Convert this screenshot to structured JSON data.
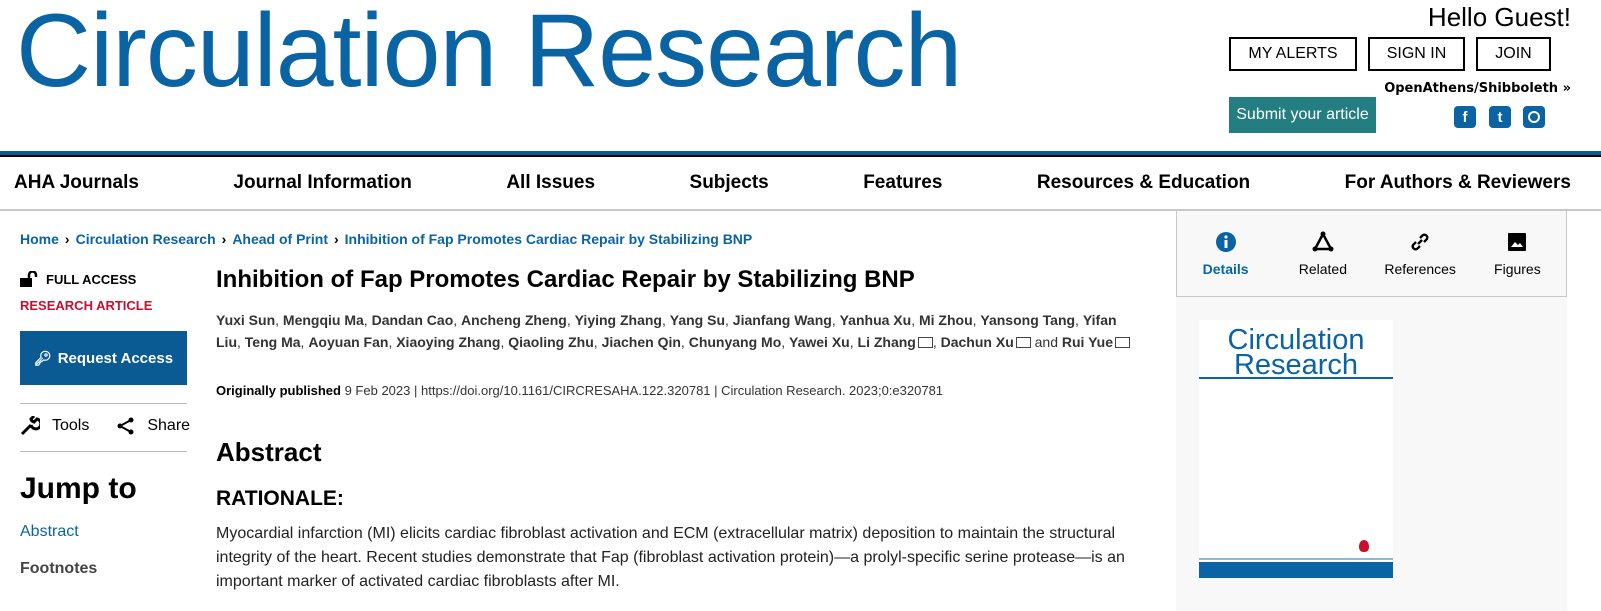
{
  "header": {
    "logo": "Circulation Research",
    "greeting": "Hello Guest!",
    "buttons": [
      "MY ALERTS",
      "SIGN IN",
      "JOIN"
    ],
    "openathens": "OpenAthens/Shibboleth »",
    "submit": "Submit your article",
    "social": [
      "facebook-icon",
      "twitter-icon",
      "instagram-icon"
    ]
  },
  "nav": [
    "AHA Journals",
    "Journal Information",
    "All Issues",
    "Subjects",
    "Features",
    "Resources & Education",
    "For Authors & Reviewers"
  ],
  "breadcrumb": [
    "Home",
    "Circulation Research",
    "Ahead of Print",
    "Inhibition of Fap Promotes Cardiac Repair by Stabilizing BNP"
  ],
  "sidebar": {
    "access": "FULL ACCESS",
    "type": "RESEARCH ARTICLE",
    "request": "Request Access",
    "tools": "Tools",
    "share": "Share",
    "jump_title": "Jump to",
    "jump_links": [
      "Abstract",
      "Footnotes"
    ]
  },
  "article": {
    "title": "Inhibition of Fap Promotes Cardiac Repair by Stabilizing BNP",
    "authors": [
      "Yuxi Sun",
      "Mengqiu Ma",
      "Dandan Cao",
      "Ancheng Zheng",
      "Yiying Zhang",
      "Yang Su",
      "Jianfang Wang",
      "Yanhua Xu",
      "Mi Zhou",
      "Yansong Tang",
      "Yifan Liu",
      "Teng Ma",
      "Aoyuan Fan",
      "Xiaoying Zhang",
      "Qiaoling Zhu",
      "Jiachen Qin",
      "Chunyang Mo",
      "Yawei Xu",
      "Li Zhang",
      "Dachun Xu",
      "Rui Yue"
    ],
    "and": "and",
    "pub_label": "Originally published",
    "pub_date": "9 Feb 2023",
    "doi": "https://doi.org/10.1161/CIRCRESAHA.122.320781",
    "citation": "Circulation Research. 2023;0:e320781",
    "abstract_heading": "Abstract",
    "rationale_heading": "RATIONALE:",
    "rationale_text": "Myocardial infarction (MI) elicits cardiac fibroblast activation and ECM (extracellular matrix) deposition to maintain the structural integrity of the heart. Recent studies demonstrate that Fap (fibroblast activation protein)—a prolyl-specific serine protease—is an important marker of activated cardiac fibroblasts after MI."
  },
  "right_tabs": [
    {
      "label": "Details",
      "icon": "info-icon",
      "active": true
    },
    {
      "label": "Related",
      "icon": "related-icon"
    },
    {
      "label": "References",
      "icon": "link-icon"
    },
    {
      "label": "Figures",
      "icon": "image-icon"
    }
  ],
  "cover": {
    "title_line1": "Circulation",
    "title_line2": "Research"
  },
  "colors": {
    "brand": "#0a64a4",
    "submit": "#237d81",
    "accent_red": "#c8102e"
  }
}
